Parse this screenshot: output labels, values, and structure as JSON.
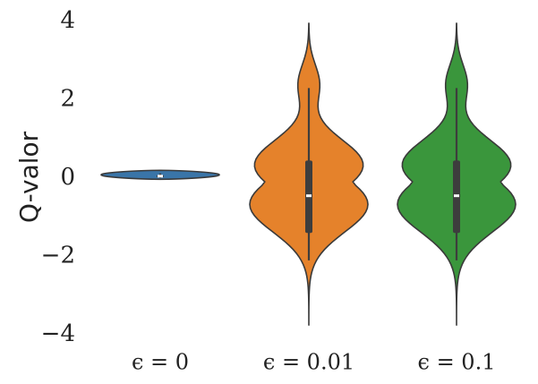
{
  "chart_data": {
    "type": "violin",
    "title": "",
    "xlabel": "",
    "ylabel": "Q-valor",
    "ylim": [
      -4,
      4
    ],
    "yticks": [
      4,
      2,
      0,
      -2,
      -4
    ],
    "ytick_labels": [
      "4",
      "2",
      "0",
      "−2",
      "−4"
    ],
    "grid": false,
    "legend": "none",
    "categories": [
      "ϵ = 0",
      "ϵ = 0.01",
      "ϵ = 0.1"
    ],
    "series": [
      {
        "category": "ϵ = 0",
        "color": "#3a75a8",
        "min": -0.03,
        "max": 0.2,
        "q1": 0.02,
        "median": 0.05,
        "q3": 0.08,
        "whisker_low": 0.0,
        "whisker_high": 0.12
      },
      {
        "category": "ϵ = 0.01",
        "color": "#e5822b",
        "min": -3.75,
        "max": 3.95,
        "q1": -1.4,
        "median": -0.45,
        "q3": 0.45,
        "whisker_low": -2.1,
        "whisker_high": 2.3
      },
      {
        "category": "ϵ = 0.1",
        "color": "#3a963c",
        "min": -3.75,
        "max": 3.95,
        "q1": -1.4,
        "median": -0.45,
        "q3": 0.45,
        "whisker_low": -2.1,
        "whisker_high": 2.3
      }
    ]
  }
}
